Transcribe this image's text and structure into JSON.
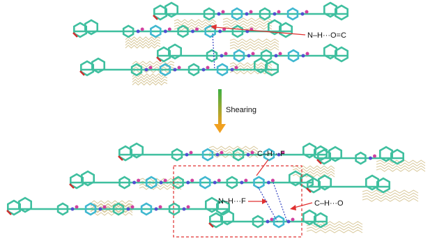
{
  "labels": {
    "top": "N–H···O=C",
    "arrow": "Shearing",
    "ch_f": "C–H···F",
    "nh_f": "N–H···F",
    "ch_o": "C–H···O"
  }
}
